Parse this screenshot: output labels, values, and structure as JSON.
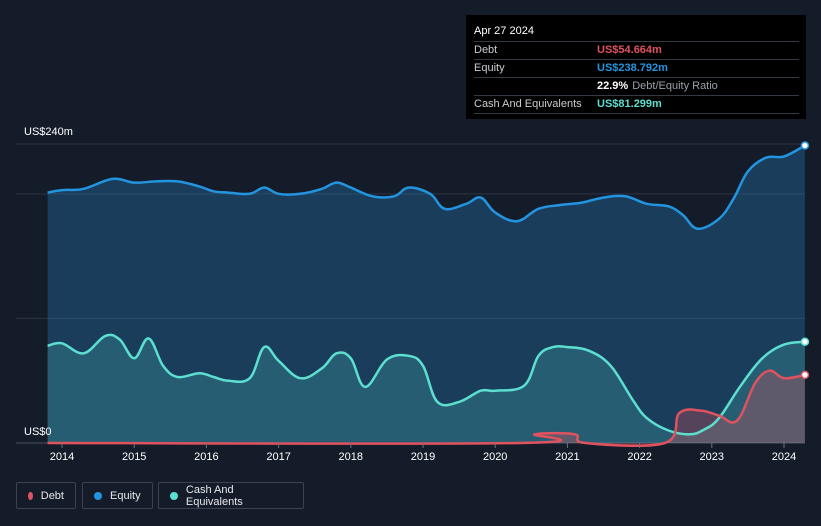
{
  "tooltip": {
    "date": "Apr 27 2024",
    "debt_label": "Debt",
    "debt_value": "US$54.664m",
    "equity_label": "Equity",
    "equity_value": "US$238.792m",
    "ratio_value": "22.9%",
    "ratio_label": "Debt/Equity Ratio",
    "cash_label": "Cash And Equivalents",
    "cash_value": "US$81.299m"
  },
  "legend": {
    "debt": "Debt",
    "equity": "Equity",
    "cash": "Cash And Equivalents"
  },
  "colors": {
    "debt": "#e0525e",
    "equity": "#2394df",
    "cash": "#5ddfd0",
    "background": "#151c29"
  },
  "chart_data": {
    "type": "area",
    "x_range": [
      2013.3,
      2024.45
    ],
    "ylim": [
      0,
      240
    ],
    "y_tick_labels": [
      "US$0",
      "US$240m"
    ],
    "x_tick_labels": [
      "2014",
      "2015",
      "2016",
      "2017",
      "2018",
      "2019",
      "2020",
      "2021",
      "2022",
      "2023",
      "2024"
    ],
    "x_ticks": [
      2014,
      2015,
      2016,
      2017,
      2018,
      2019,
      2020,
      2021,
      2022,
      2023,
      2024
    ],
    "gridlines": [
      0,
      100,
      200,
      240
    ],
    "series": [
      {
        "name": "Equity",
        "x": [
          2013.8,
          2014.0,
          2014.3,
          2014.7,
          2015.0,
          2015.3,
          2015.6,
          2015.9,
          2016.1,
          2016.3,
          2016.6,
          2016.8,
          2017.0,
          2017.3,
          2017.6,
          2017.8,
          2018.0,
          2018.3,
          2018.6,
          2018.8,
          2019.1,
          2019.3,
          2019.6,
          2019.8,
          2020.0,
          2020.3,
          2020.6,
          2020.9,
          2021.2,
          2021.5,
          2021.8,
          2022.1,
          2022.4,
          2022.6,
          2022.8,
          2023.1,
          2023.3,
          2023.5,
          2023.75,
          2024.0,
          2024.29
        ],
        "y": [
          201,
          203,
          204,
          212,
          209,
          210,
          210,
          206,
          202,
          201,
          200,
          205,
          200,
          200,
          204,
          209,
          205,
          198,
          198,
          205,
          200,
          188,
          192,
          197,
          185,
          178,
          188,
          191,
          193,
          197,
          198,
          192,
          190,
          183,
          172,
          180,
          196,
          218,
          229,
          230,
          238.8
        ]
      },
      {
        "name": "Cash And Equivalents",
        "x": [
          2013.8,
          2014.0,
          2014.3,
          2014.6,
          2014.8,
          2015.0,
          2015.2,
          2015.4,
          2015.6,
          2015.9,
          2016.1,
          2016.3,
          2016.6,
          2016.8,
          2017.0,
          2017.3,
          2017.6,
          2017.8,
          2018.0,
          2018.2,
          2018.5,
          2018.8,
          2019.0,
          2019.2,
          2019.5,
          2019.8,
          2020.0,
          2020.4,
          2020.6,
          2020.8,
          2021.0,
          2021.3,
          2021.6,
          2021.9,
          2022.1,
          2022.4,
          2022.7,
          2022.9,
          2023.1,
          2023.4,
          2023.7,
          2024.0,
          2024.29
        ],
        "y": [
          78,
          80,
          72,
          86,
          83,
          68,
          84,
          62,
          53,
          56,
          53,
          50,
          52,
          77,
          66,
          52,
          60,
          72,
          68,
          45,
          67,
          70,
          62,
          33,
          33,
          42,
          42,
          46,
          70,
          77,
          77,
          74,
          62,
          35,
          20,
          10,
          7,
          11,
          20,
          46,
          68,
          79,
          81.3
        ]
      },
      {
        "name": "Debt",
        "x": [
          2013.8,
          2020.35,
          2020.55,
          2021.1,
          2021.25,
          2022.35,
          2022.55,
          2022.85,
          2023.1,
          2023.35,
          2023.6,
          2023.8,
          2024.0,
          2024.29
        ],
        "y": [
          0,
          0,
          7,
          7,
          0,
          0,
          24,
          26,
          22,
          18,
          48,
          58,
          52,
          54.7
        ]
      }
    ]
  }
}
